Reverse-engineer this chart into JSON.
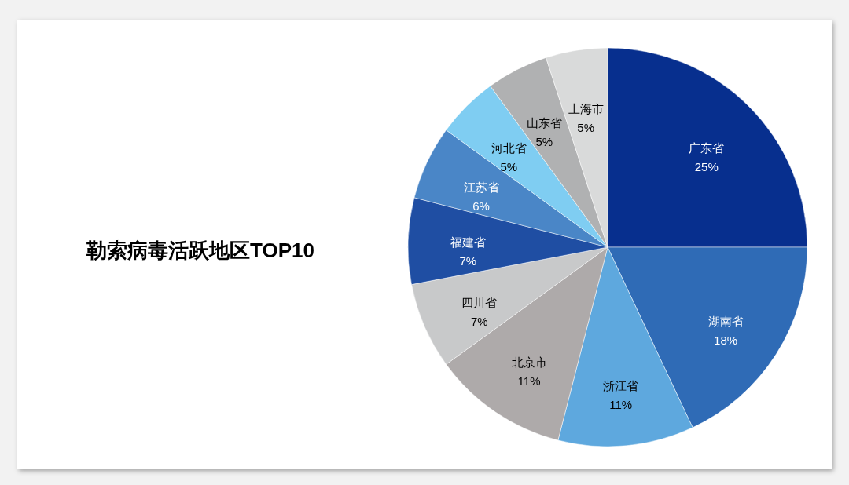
{
  "chart_data": {
    "type": "pie",
    "title": "勒索病毒活跃地区TOP10",
    "categories": [
      "广东省",
      "湖南省",
      "浙江省",
      "北京市",
      "四川省",
      "福建省",
      "江苏省",
      "河北省",
      "山东省",
      "上海市"
    ],
    "values": [
      25,
      18,
      11,
      11,
      7,
      7,
      6,
      5,
      5,
      5
    ],
    "value_labels": [
      "25%",
      "18%",
      "11%",
      "11%",
      "7%",
      "7%",
      "6%",
      "5%",
      "5%",
      "5%"
    ],
    "colors": [
      "#072f8e",
      "#2f6bb6",
      "#5ea8de",
      "#aeaaaa",
      "#c8c9ca",
      "#1f4ea3",
      "#4a86c7",
      "#7fcdf2",
      "#b0b1b2",
      "#d9dada"
    ]
  }
}
